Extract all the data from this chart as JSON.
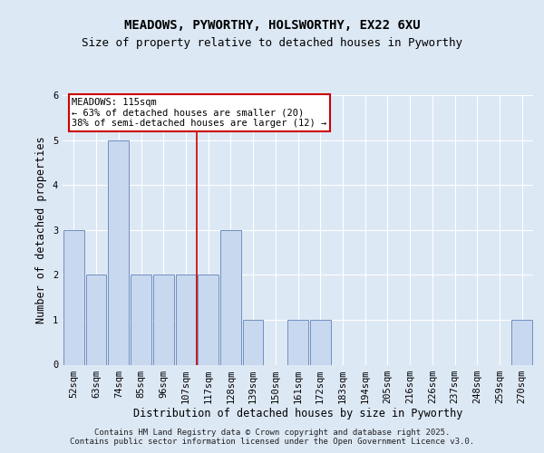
{
  "title_line1": "MEADOWS, PYWORTHY, HOLSWORTHY, EX22 6XU",
  "title_line2": "Size of property relative to detached houses in Pyworthy",
  "xlabel": "Distribution of detached houses by size in Pyworthy",
  "ylabel": "Number of detached properties",
  "categories": [
    "52sqm",
    "63sqm",
    "74sqm",
    "85sqm",
    "96sqm",
    "107sqm",
    "117sqm",
    "128sqm",
    "139sqm",
    "150sqm",
    "161sqm",
    "172sqm",
    "183sqm",
    "194sqm",
    "205sqm",
    "216sqm",
    "226sqm",
    "237sqm",
    "248sqm",
    "259sqm",
    "270sqm"
  ],
  "values": [
    3,
    2,
    5,
    2,
    2,
    2,
    2,
    3,
    1,
    0,
    1,
    1,
    0,
    0,
    0,
    0,
    0,
    0,
    0,
    0,
    1
  ],
  "bar_color": "#c8d8ee",
  "bar_edge_color": "#7090c0",
  "vline_color": "#cc0000",
  "annotation_text": "MEADOWS: 115sqm\n← 63% of detached houses are smaller (20)\n38% of semi-detached houses are larger (12) →",
  "annotation_box_edge": "#cc0000",
  "bg_color": "#dde8f5",
  "plot_bg_color": "#dde8f5",
  "footer_text": "Contains HM Land Registry data © Crown copyright and database right 2025.\nContains public sector information licensed under the Open Government Licence v3.0.",
  "ylim": [
    0,
    6.0
  ],
  "yticks": [
    0,
    1,
    2,
    3,
    4,
    5,
    6
  ],
  "grid_color": "#ffffff",
  "title_fontsize": 10,
  "subtitle_fontsize": 9,
  "axis_label_fontsize": 8.5,
  "tick_fontsize": 7.5,
  "annotation_fontsize": 7.5,
  "footer_fontsize": 6.5,
  "vline_index": 6
}
